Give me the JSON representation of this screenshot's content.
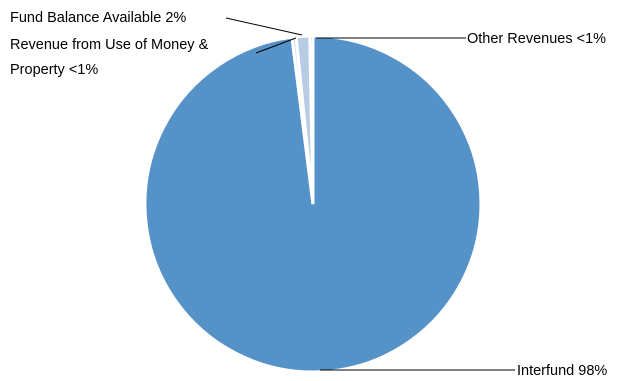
{
  "chart_data": {
    "type": "pie",
    "title": "",
    "start_angle_deg": 0,
    "direction": "clockwise",
    "slices": [
      {
        "label": "Interfund",
        "value": 98,
        "color": "#5592c7"
      },
      {
        "label": "Revenue from Use of Money & Property",
        "value": 0.4,
        "color": "#d2deef"
      },
      {
        "label": "Fund Balance Available",
        "value": 1.3,
        "color": "#b7cce4"
      },
      {
        "label": "Other Revenues",
        "value": 0.3,
        "color": "#2a5a8a"
      }
    ],
    "labels": {
      "interfund": "Interfund 98%",
      "other_revenues": "Other Revenues <1%",
      "fund_balance": "Fund Balance Available 2%",
      "use_of_money_line1": "Revenue from Use of Money &",
      "use_of_money_line2": "Property <1%"
    }
  }
}
